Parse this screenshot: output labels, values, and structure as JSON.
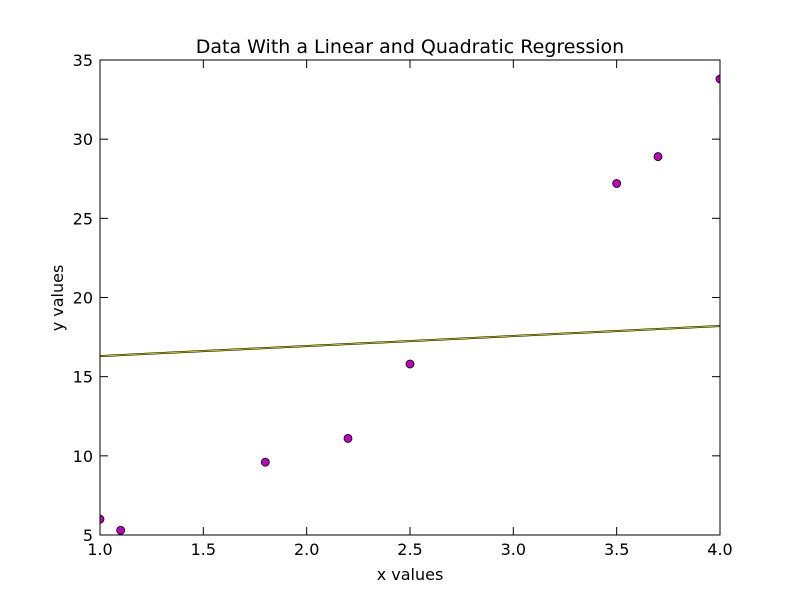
{
  "chart_data": {
    "type": "scatter",
    "title": "Data With a Linear and Quadratic Regression",
    "xlabel": "x values",
    "ylabel": "y values",
    "xlim": [
      1.0,
      4.0
    ],
    "ylim": [
      5,
      35
    ],
    "x_ticks": [
      "1.0",
      "1.5",
      "2.0",
      "2.5",
      "3.0",
      "3.5",
      "4.0"
    ],
    "y_ticks": [
      "5",
      "10",
      "15",
      "20",
      "25",
      "30",
      "35"
    ],
    "grid": false,
    "series": [
      {
        "type": "scatter",
        "color": "#bf00bf",
        "points": [
          {
            "x": 1.0,
            "y": 6.0
          },
          {
            "x": 1.1,
            "y": 5.3
          },
          {
            "x": 1.8,
            "y": 9.6
          },
          {
            "x": 2.2,
            "y": 11.1
          },
          {
            "x": 2.5,
            "y": 15.8
          },
          {
            "x": 3.5,
            "y": 27.2
          },
          {
            "x": 3.7,
            "y": 28.9
          },
          {
            "x": 4.0,
            "y": 33.8
          }
        ]
      },
      {
        "type": "line",
        "color": "#000000",
        "points": [
          {
            "x": 1.0,
            "y": 16.3
          },
          {
            "x": 4.0,
            "y": 18.2
          }
        ]
      },
      {
        "type": "line",
        "color": "#c8c800",
        "points": [
          {
            "x": 1.0,
            "y": 16.3
          },
          {
            "x": 4.0,
            "y": 18.2
          }
        ]
      }
    ]
  }
}
